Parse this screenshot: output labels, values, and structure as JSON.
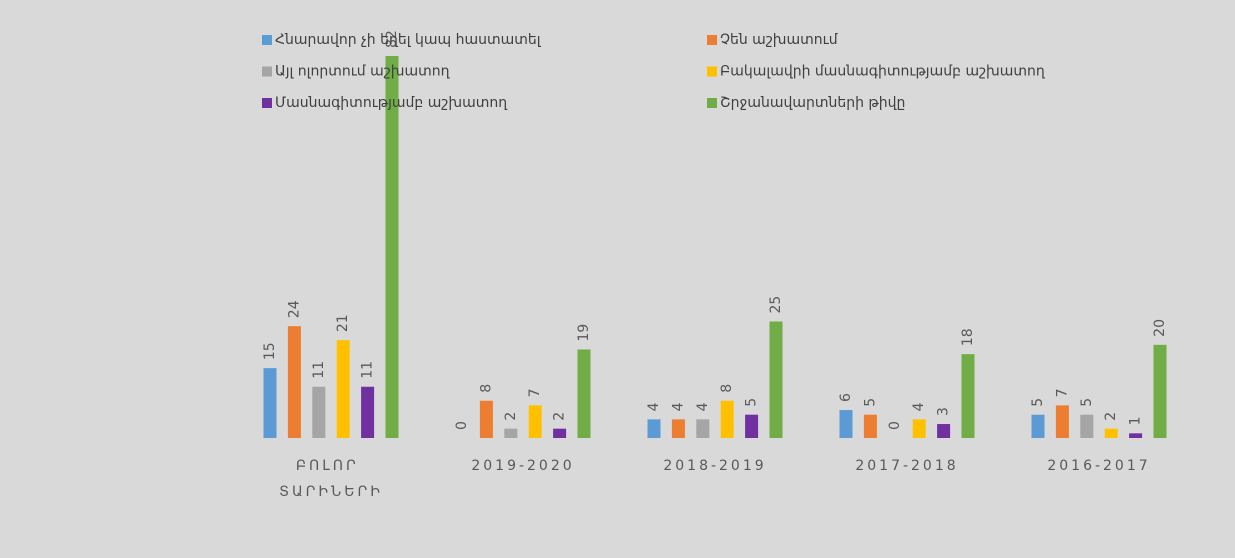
{
  "chart_data": {
    "type": "bar",
    "categories": [
      "ԲՈԼՈՐ ՏԱՐԻՆԵՐԻ",
      "2019-2020",
      "2018-2019",
      "2017-2018",
      "2016-2017"
    ],
    "series": [
      {
        "name": "Հնարավոր չի եղել կապ հաստատել",
        "color": "#5b9bd5",
        "values": [
          15,
          0,
          4,
          6,
          5
        ]
      },
      {
        "name": "Չեն աշխատում",
        "color": "#ed7d31",
        "values": [
          24,
          8,
          4,
          5,
          7
        ]
      },
      {
        "name": "Այլ ոլորտում աշխատող",
        "color": "#a5a5a5",
        "values": [
          11,
          2,
          4,
          0,
          5
        ]
      },
      {
        "name": "Բակալավրի մասնագիտությամբ աշխատող",
        "color": "#ffc000",
        "values": [
          21,
          7,
          8,
          4,
          2
        ]
      },
      {
        "name": "Մասնագիտությամբ աշխատող",
        "color": "#7030a0",
        "values": [
          11,
          2,
          5,
          3,
          1
        ]
      },
      {
        "name": "Շրջանավարտների թիվը",
        "color": "#70ad47",
        "values": [
          82,
          19,
          25,
          18,
          20
        ]
      }
    ],
    "legend": "top",
    "grid": false
  }
}
